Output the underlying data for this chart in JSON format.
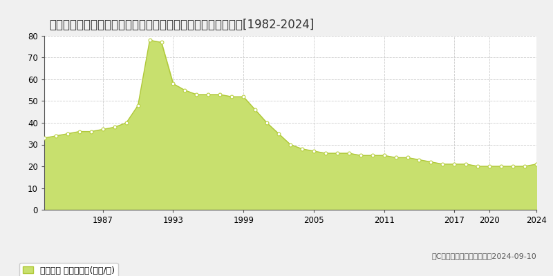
{
  "title": "大阪府河内長野市汐の宮町１４５番１８　地価公示　地価推移[1982-2024]",
  "legend_label": "地価公示 平均坪単価(万円/坪)",
  "copyright": "（C）土地価格ドットコム　2024-09-10",
  "years": [
    1982,
    1983,
    1984,
    1985,
    1986,
    1987,
    1988,
    1989,
    1990,
    1991,
    1992,
    1993,
    1994,
    1995,
    1996,
    1997,
    1998,
    1999,
    2000,
    2001,
    2002,
    2003,
    2004,
    2005,
    2006,
    2007,
    2008,
    2009,
    2010,
    2011,
    2012,
    2013,
    2014,
    2015,
    2016,
    2017,
    2018,
    2019,
    2020,
    2021,
    2022,
    2023,
    2024
  ],
  "values": [
    33,
    34,
    35,
    36,
    36,
    37,
    38,
    40,
    48,
    78,
    77,
    58,
    55,
    53,
    53,
    53,
    52,
    52,
    46,
    40,
    35,
    30,
    28,
    27,
    26,
    26,
    26,
    25,
    25,
    25,
    24,
    24,
    23,
    22,
    21,
    21,
    21,
    20,
    20,
    20,
    20,
    20,
    21
  ],
  "fill_color": "#c8e06e",
  "line_color": "#b0c83a",
  "marker_color": "#ffffff",
  "marker_edge_color": "#b8d040",
  "background_color": "#f0f0f0",
  "plot_bg_color": "#ffffff",
  "grid_color": "#cccccc",
  "ylim": [
    0,
    80
  ],
  "yticks": [
    0,
    10,
    20,
    30,
    40,
    50,
    60,
    70,
    80
  ],
  "xtick_positions": [
    1987,
    1993,
    1999,
    2005,
    2011,
    2017,
    2020,
    2024
  ],
  "xlim": [
    1982,
    2024
  ],
  "title_fontsize": 12,
  "legend_fontsize": 9,
  "tick_fontsize": 8.5
}
